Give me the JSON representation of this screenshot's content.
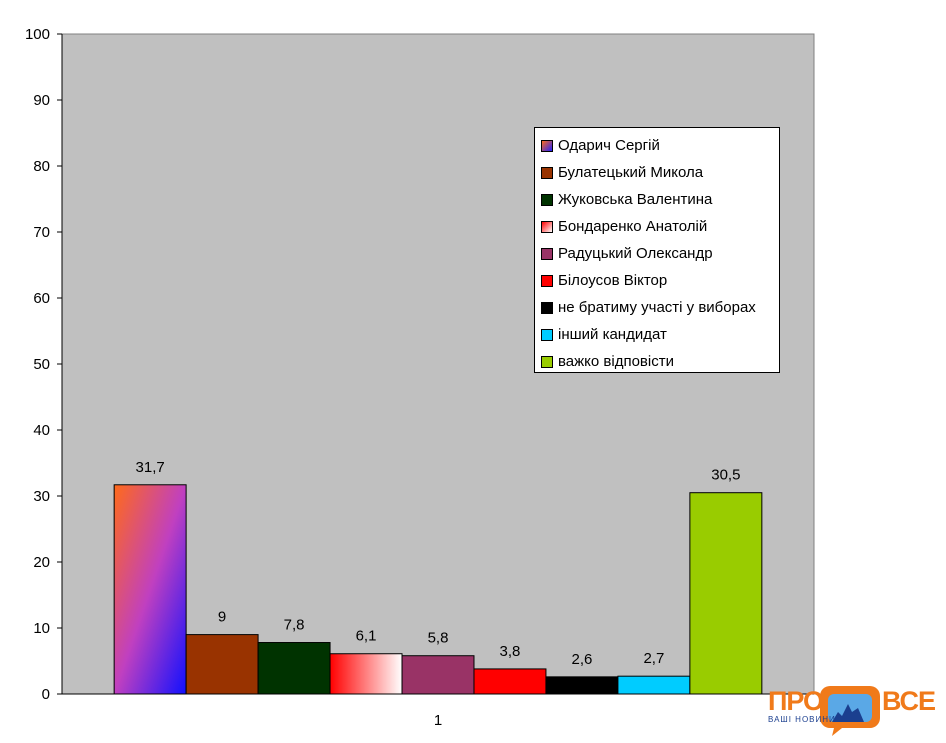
{
  "chart_data": {
    "type": "bar",
    "categories": [
      "1"
    ],
    "ylim": [
      0,
      100
    ],
    "yticks": [
      0,
      10,
      20,
      30,
      40,
      50,
      60,
      70,
      80,
      90,
      100
    ],
    "grid": false,
    "legend_position": "upper-right inside plot",
    "plot_background": "#c0c0c0",
    "series": [
      {
        "name": "Одарич Сергій",
        "values": [
          31.7
        ],
        "label": "31,7",
        "color": "#b040c0",
        "gradient": [
          "#ff6a1a",
          "#2020ff"
        ]
      },
      {
        "name": "Булатецький Микола",
        "values": [
          9
        ],
        "label": "9",
        "color": "#993300"
      },
      {
        "name": "Жуковська Валентина",
        "values": [
          7.8
        ],
        "label": "7,8",
        "color": "#003300"
      },
      {
        "name": "Бондаренко Анатолій",
        "values": [
          6.1
        ],
        "label": "6,1",
        "color": "#ff8080",
        "gradient": [
          "#ff0000",
          "#ffffff"
        ]
      },
      {
        "name": "Радуцький Олександр",
        "values": [
          5.8
        ],
        "label": "5,8",
        "color": "#993366"
      },
      {
        "name": "Білоусов Віктор",
        "values": [
          3.8
        ],
        "label": "3,8",
        "color": "#ff0000"
      },
      {
        "name": "не братиму участі у виборах",
        "values": [
          2.6
        ],
        "label": "2,6",
        "color": "#000000"
      },
      {
        "name": "інший кандидат",
        "values": [
          2.7
        ],
        "label": "2,7",
        "color": "#00ccff"
      },
      {
        "name": "важко відповісти",
        "values": [
          30.5
        ],
        "label": "30,5",
        "color": "#99cc00"
      }
    ]
  },
  "watermark": {
    "left_word": "ПРО",
    "right_word": "ВСЕ",
    "tagline": "ВАШІ НОВИНИ"
  }
}
